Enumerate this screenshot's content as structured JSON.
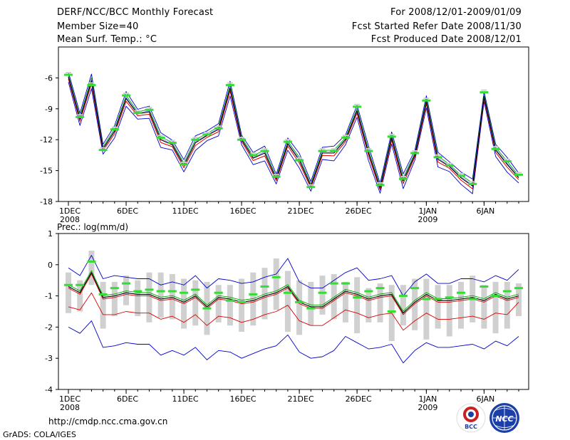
{
  "header": {
    "title": "DERF/NCC/BCC Monthly Forecast",
    "member_size": "Member Size=40",
    "variable": "Mean Surf. Temp.: °C",
    "period": "For 2008/12/01-2009/01/09",
    "started": "Fcst Started Refer Date 2008/11/30",
    "produced": "Fcst Produced Date 2008/12/01"
  },
  "footer": {
    "url": "http://cmdp.ncc.cma.gov.cn",
    "grads": "GrADS: COLA/IGES"
  },
  "logos": {
    "left_text": "BCC",
    "right_text": "NCC"
  },
  "colors": {
    "mean": "#000000",
    "member_low": "#dd0000",
    "member_mid": "#00aa00",
    "envelope": "#0000cc",
    "observed": "#33dd33",
    "spread_bar": "#d0d0d0"
  },
  "chart_data": [
    {
      "type": "line",
      "title": "Mean Surf. Temp.: °C",
      "xlabel": "",
      "ylabel": "°C",
      "ylim": [
        -18,
        -3
      ],
      "yticks": [
        "-6",
        "-9",
        "-12",
        "-15",
        "-18"
      ],
      "yticks_values": [
        -6,
        -9,
        -12,
        -15,
        -18
      ],
      "xticks": [
        "1DEC",
        "6DEC",
        "11DEC",
        "16DEC",
        "21DEC",
        "26DEC",
        "1JAN",
        "6JAN"
      ],
      "xticks_sub": [
        "2008",
        "",
        "",
        "",
        "",
        "",
        "2009",
        ""
      ],
      "xticks_index": [
        0,
        5,
        10,
        15,
        20,
        25,
        31,
        36
      ],
      "days": 40,
      "series": [
        {
          "name": "ensemble mean",
          "values": [
            -5.9,
            -10.0,
            -6.3,
            -12.9,
            -11.2,
            -8.0,
            -9.5,
            -9.3,
            -12.0,
            -12.5,
            -14.5,
            -12.3,
            -11.6,
            -11.0,
            -7.0,
            -12.0,
            -13.8,
            -13.3,
            -15.8,
            -12.4,
            -14.0,
            -16.5,
            -13.3,
            -13.3,
            -12.0,
            -9.2,
            -13.3,
            -16.7,
            -11.8,
            -16.0,
            -13.5,
            -8.3,
            -13.9,
            -14.6,
            -15.7,
            -16.5,
            -7.8,
            -13.0,
            -14.4,
            -15.7
          ]
        },
        {
          "name": "observed",
          "values": [
            -5.7,
            -9.8,
            -6.7,
            -13.0,
            -11.0,
            -7.7,
            -9.4,
            -9.1,
            -11.8,
            -12.3,
            -14.4,
            -12.0,
            -11.5,
            -10.9,
            -6.7,
            -12.0,
            -13.5,
            -13.1,
            -15.6,
            -12.2,
            -14.0,
            -16.6,
            -13.1,
            -13.1,
            -11.8,
            -8.8,
            -13.1,
            -16.4,
            -11.7,
            -15.8,
            -13.3,
            -8.2,
            -13.7,
            -14.5,
            -15.5,
            -16.3,
            -7.4,
            -12.9,
            -14.1,
            -15.4
          ]
        }
      ]
    },
    {
      "type": "line",
      "title": "Prec.: log(mm/d)",
      "xlabel": "",
      "ylabel": "log(mm/d)",
      "ylim": [
        -4,
        1
      ],
      "yticks": [
        "1",
        "0",
        "-1",
        "-2",
        "-3",
        "-4"
      ],
      "yticks_values": [
        1,
        0,
        -1,
        -2,
        -3,
        -4
      ],
      "xticks": [
        "1DEC",
        "6DEC",
        "11DEC",
        "16DEC",
        "21DEC",
        "26DEC",
        "1JAN",
        "6JAN"
      ],
      "xticks_sub": [
        "2008",
        "",
        "",
        "",
        "",
        "",
        "2009",
        ""
      ],
      "xticks_index": [
        0,
        5,
        10,
        15,
        20,
        25,
        31,
        36
      ],
      "days": 40,
      "series": [
        {
          "name": "ensemble mean",
          "values": [
            -0.7,
            -0.9,
            -0.25,
            -1.05,
            -1.0,
            -0.9,
            -0.95,
            -0.95,
            -1.1,
            -1.05,
            -1.2,
            -1.0,
            -1.35,
            -1.05,
            -1.1,
            -1.2,
            -1.15,
            -1.0,
            -0.9,
            -0.7,
            -1.2,
            -1.35,
            -1.35,
            -1.1,
            -0.85,
            -0.95,
            -1.1,
            -1.0,
            -0.95,
            -1.55,
            -1.2,
            -0.95,
            -1.15,
            -1.15,
            -1.1,
            -1.05,
            -1.15,
            -0.95,
            -1.1,
            -1.0
          ]
        },
        {
          "name": "upper envelope",
          "values": [
            -0.1,
            -0.35,
            0.3,
            -0.45,
            -0.35,
            -0.4,
            -0.45,
            -0.45,
            -0.65,
            -0.55,
            -0.65,
            -0.35,
            -0.75,
            -0.45,
            -0.5,
            -0.6,
            -0.55,
            -0.4,
            -0.3,
            0.2,
            -0.55,
            -0.75,
            -0.75,
            -0.5,
            -0.25,
            -0.1,
            -0.5,
            -0.45,
            -0.35,
            -1.0,
            -0.55,
            -0.3,
            -0.6,
            -0.6,
            -0.45,
            -0.45,
            -0.55,
            -0.35,
            -0.5,
            -0.15
          ]
        },
        {
          "name": "lower member",
          "values": [
            -1.35,
            -1.45,
            -0.9,
            -1.6,
            -1.6,
            -1.5,
            -1.55,
            -1.55,
            -1.75,
            -1.65,
            -1.85,
            -1.6,
            -1.95,
            -1.65,
            -1.7,
            -1.85,
            -1.75,
            -1.6,
            -1.5,
            -1.3,
            -1.8,
            -1.95,
            -1.95,
            -1.7,
            -1.45,
            -1.55,
            -1.7,
            -1.6,
            -1.55,
            -2.1,
            -1.8,
            -1.55,
            -1.75,
            -1.75,
            -1.7,
            -1.65,
            -1.75,
            -1.55,
            -1.6,
            -1.2
          ]
        },
        {
          "name": "lower envelope",
          "values": [
            -2.0,
            -2.2,
            -1.8,
            -2.65,
            -2.6,
            -2.5,
            -2.55,
            -2.55,
            -2.9,
            -2.75,
            -2.9,
            -2.65,
            -3.05,
            -2.75,
            -2.8,
            -3.0,
            -2.85,
            -2.7,
            -2.6,
            -2.25,
            -2.8,
            -3.0,
            -2.95,
            -2.75,
            -2.3,
            -2.5,
            -2.7,
            -2.65,
            -2.55,
            -3.15,
            -2.75,
            -2.5,
            -2.65,
            -2.65,
            -2.6,
            -2.55,
            -2.7,
            -2.45,
            -2.6,
            -2.3
          ]
        },
        {
          "name": "observed",
          "values": [
            -0.65,
            -0.65,
            0.1,
            -0.95,
            -0.75,
            -0.6,
            -0.85,
            -0.8,
            -0.85,
            -0.85,
            -0.9,
            -0.8,
            -1.4,
            -0.9,
            -1.15,
            -1.2,
            -0.95,
            -0.7,
            -0.4,
            -0.9,
            -1.2,
            -1.4,
            -0.9,
            -0.6,
            -0.6,
            -1.05,
            -0.85,
            -0.75,
            -1.5,
            -1.0,
            -0.75,
            -1.1,
            -1.1,
            -1.05,
            -0.9,
            -1.1,
            -0.7,
            -1.0,
            -0.85,
            -0.75
          ]
        },
        {
          "name": "spread bar top",
          "values": [
            -0.25,
            -0.5,
            0.45,
            -0.55,
            -0.55,
            -0.35,
            -0.5,
            -0.25,
            -0.25,
            -0.3,
            -0.45,
            -0.5,
            -0.55,
            -0.65,
            -0.65,
            -0.45,
            -0.25,
            -0.1,
            0.2,
            -0.2,
            -0.5,
            -0.55,
            -0.35,
            -0.3,
            -0.55,
            -0.4,
            -0.75,
            -0.6,
            -0.65,
            -0.65,
            -0.45,
            -0.45,
            -0.65,
            -0.65,
            -0.55,
            -0.35,
            -0.65,
            -0.55,
            -0.55,
            -0.6
          ]
        },
        {
          "name": "spread bar bottom",
          "values": [
            -1.55,
            -1.5,
            -0.65,
            -2.05,
            -1.65,
            -1.3,
            -1.65,
            -1.85,
            -1.7,
            -1.75,
            -2.05,
            -1.95,
            -2.25,
            -1.85,
            -1.95,
            -2.15,
            -1.95,
            -1.75,
            -1.45,
            -2.15,
            -2.25,
            -1.95,
            -1.6,
            -1.75,
            -1.85,
            -2.2,
            -1.85,
            -1.85,
            -2.45,
            -1.95,
            -2.1,
            -2.4,
            -2.05,
            -2.3,
            -2.05,
            -1.85,
            -2.05,
            -2.2,
            -2.05,
            -1.65
          ]
        }
      ]
    }
  ]
}
